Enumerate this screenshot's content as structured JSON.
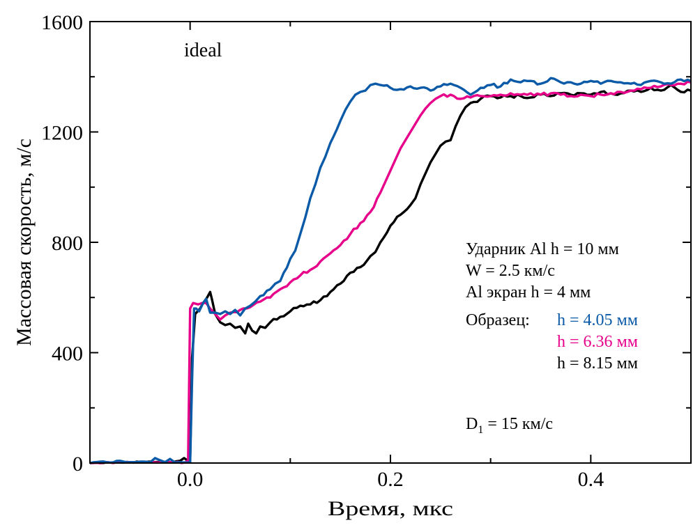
{
  "chart_data": {
    "type": "line",
    "title": "",
    "xlabel": "Время, мкс",
    "ylabel": "Массовая скорость, м/с",
    "xlim": [
      -0.1,
      0.5
    ],
    "ylim": [
      0,
      1600
    ],
    "xticks": [
      0.0,
      0.2,
      0.4
    ],
    "xtick_labels": [
      "0.0",
      "0.2",
      "0.4"
    ],
    "xminor_step": 0.1,
    "yticks": [
      0,
      400,
      800,
      1200,
      1600
    ],
    "ytick_labels": [
      "0",
      "400",
      "800",
      "1200",
      "1600"
    ],
    "yminor_step": 200,
    "grid": false,
    "ticks_inward_all_sides": true,
    "series": [
      {
        "name": "h = 4.05 мм",
        "color": "#0a5aa8",
        "x": [
          -0.1,
          -0.09,
          -0.08,
          -0.07,
          -0.06,
          -0.05,
          -0.04,
          -0.035,
          -0.03,
          -0.025,
          -0.02,
          -0.015,
          -0.01,
          -0.005,
          0.0,
          0.002,
          0.004,
          0.006,
          0.009,
          0.013,
          0.016,
          0.02,
          0.025,
          0.03,
          0.035,
          0.04,
          0.045,
          0.05,
          0.055,
          0.06,
          0.065,
          0.07,
          0.08,
          0.085,
          0.09,
          0.1,
          0.105,
          0.11,
          0.115,
          0.12,
          0.125,
          0.13,
          0.135,
          0.14,
          0.15,
          0.155,
          0.16,
          0.165,
          0.17,
          0.175,
          0.18,
          0.185,
          0.19,
          0.2,
          0.21,
          0.22,
          0.23,
          0.24,
          0.25,
          0.26,
          0.27,
          0.28,
          0.29,
          0.3,
          0.31,
          0.32,
          0.33,
          0.34,
          0.35,
          0.36,
          0.37,
          0.38,
          0.39,
          0.4,
          0.41,
          0.42,
          0.43,
          0.44,
          0.45,
          0.46,
          0.47,
          0.48,
          0.49,
          0.5
        ],
        "values": [
          0,
          5,
          2,
          8,
          3,
          5,
          2,
          18,
          10,
          3,
          15,
          2,
          3,
          2,
          2,
          300,
          560,
          560,
          550,
          580,
          595,
          545,
          545,
          540,
          550,
          540,
          555,
          535,
          560,
          570,
          585,
          605,
          630,
          650,
          660,
          740,
          770,
          830,
          890,
          960,
          1010,
          1070,
          1110,
          1160,
          1240,
          1280,
          1310,
          1335,
          1345,
          1350,
          1370,
          1375,
          1370,
          1360,
          1355,
          1365,
          1360,
          1350,
          1365,
          1375,
          1360,
          1335,
          1360,
          1370,
          1365,
          1390,
          1380,
          1385,
          1375,
          1395,
          1380,
          1380,
          1375,
          1385,
          1375,
          1385,
          1380,
          1375,
          1370,
          1385,
          1380,
          1375,
          1390,
          1385
        ]
      },
      {
        "name": "h = 6.36 мм",
        "color": "#e6008a",
        "x": [
          -0.1,
          -0.08,
          -0.06,
          -0.04,
          -0.02,
          -0.005,
          -0.002,
          0.0,
          0.003,
          0.008,
          0.012,
          0.016,
          0.02,
          0.025,
          0.03,
          0.035,
          0.04,
          0.05,
          0.06,
          0.07,
          0.08,
          0.09,
          0.1,
          0.11,
          0.12,
          0.13,
          0.14,
          0.15,
          0.16,
          0.17,
          0.18,
          0.19,
          0.195,
          0.2,
          0.205,
          0.21,
          0.215,
          0.22,
          0.225,
          0.23,
          0.235,
          0.24,
          0.245,
          0.25,
          0.26,
          0.27,
          0.28,
          0.29,
          0.3,
          0.31,
          0.32,
          0.33,
          0.34,
          0.35,
          0.36,
          0.37,
          0.38,
          0.39,
          0.4,
          0.41,
          0.42,
          0.43,
          0.44,
          0.45,
          0.46,
          0.47,
          0.48,
          0.49,
          0.5
        ],
        "values": [
          0,
          2,
          3,
          2,
          3,
          2,
          10,
          560,
          580,
          575,
          580,
          580,
          560,
          540,
          520,
          535,
          545,
          555,
          565,
          585,
          600,
          630,
          655,
          680,
          700,
          730,
          760,
          790,
          830,
          870,
          910,
          980,
          1020,
          1060,
          1100,
          1140,
          1170,
          1200,
          1230,
          1260,
          1285,
          1305,
          1320,
          1330,
          1335,
          1320,
          1325,
          1330,
          1330,
          1335,
          1340,
          1335,
          1340,
          1335,
          1340,
          1335,
          1330,
          1335,
          1330,
          1335,
          1340,
          1345,
          1350,
          1355,
          1360,
          1365,
          1370,
          1375,
          1380
        ]
      },
      {
        "name": "h = 8.15 мм",
        "color": "#000000",
        "x": [
          -0.1,
          -0.08,
          -0.06,
          -0.04,
          -0.02,
          -0.01,
          -0.006,
          -0.003,
          0.0,
          0.002,
          0.005,
          0.01,
          0.013,
          0.017,
          0.02,
          0.022,
          0.025,
          0.03,
          0.035,
          0.04,
          0.045,
          0.05,
          0.055,
          0.058,
          0.062,
          0.066,
          0.07,
          0.075,
          0.08,
          0.09,
          0.1,
          0.11,
          0.12,
          0.13,
          0.14,
          0.15,
          0.16,
          0.17,
          0.18,
          0.185,
          0.19,
          0.2,
          0.21,
          0.22,
          0.225,
          0.23,
          0.235,
          0.24,
          0.245,
          0.25,
          0.255,
          0.26,
          0.265,
          0.27,
          0.275,
          0.28,
          0.29,
          0.3,
          0.31,
          0.32,
          0.33,
          0.34,
          0.35,
          0.36,
          0.37,
          0.38,
          0.39,
          0.4,
          0.41,
          0.42,
          0.43,
          0.44,
          0.45,
          0.46,
          0.47,
          0.48,
          0.49,
          0.5
        ],
        "values": [
          0,
          2,
          3,
          5,
          3,
          8,
          18,
          10,
          5,
          380,
          540,
          560,
          580,
          600,
          620,
          590,
          540,
          510,
          500,
          505,
          490,
          495,
          470,
          505,
          480,
          470,
          495,
          490,
          510,
          530,
          550,
          570,
          575,
          590,
          620,
          650,
          690,
          710,
          750,
          765,
          800,
          860,
          900,
          935,
          960,
          1010,
          1050,
          1090,
          1120,
          1150,
          1165,
          1170,
          1220,
          1260,
          1290,
          1305,
          1320,
          1330,
          1325,
          1330,
          1330,
          1325,
          1335,
          1330,
          1340,
          1335,
          1340,
          1335,
          1345,
          1340,
          1340,
          1350,
          1345,
          1360,
          1350,
          1370,
          1345,
          1350
        ]
      }
    ],
    "annotations": [
      {
        "text": "ideal",
        "color": "#e6008a",
        "position": "top-left"
      },
      {
        "text": "Ударник Al h = 10 мм",
        "color": "#000000"
      },
      {
        "text": "W = 2.5 км/с",
        "color": "#000000"
      },
      {
        "text": "Al экран h = 4 мм",
        "color": "#000000"
      },
      {
        "text": "Образец:",
        "color": "#000000"
      },
      {
        "text": "h = 4.05 мм",
        "color": "#0a5aa8"
      },
      {
        "text": "h = 6.36 мм",
        "color": "#e6008a"
      },
      {
        "text": "h = 8.15 мм",
        "color": "#000000"
      },
      {
        "text": "D",
        "subscript": "1",
        "suffix": " = 15 км/с",
        "color": "#000000"
      }
    ],
    "legend": "inline-annotation-right"
  }
}
